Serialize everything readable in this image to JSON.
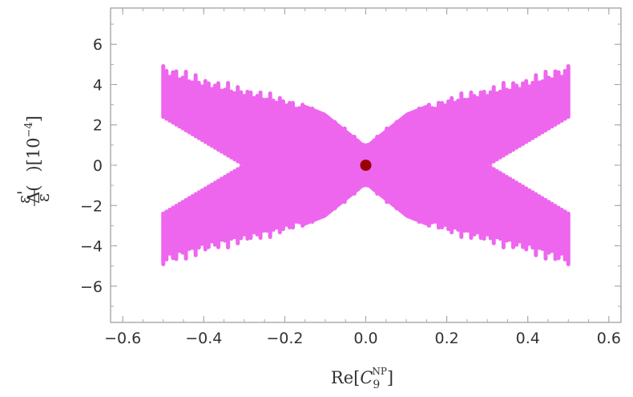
{
  "chart_data": {
    "type": "scatter",
    "xlabel": "Re[C_9^NP]",
    "xlabel_parts": {
      "prefix": "Re[",
      "symbol": "C",
      "sub": "9",
      "sup": "NP",
      "suffix": "]"
    },
    "ylabel": "Δ(ε'/ε)[10^-4]",
    "ylabel_parts": {
      "delta": "Δ(",
      "num": "ε'",
      "den": "ε",
      "close": ")[10",
      "exp": "−4",
      "end": "]"
    },
    "xlim": [
      -0.63,
      0.63
    ],
    "ylim": [
      -7.8,
      7.8
    ],
    "x_ticks": [
      -0.6,
      -0.4,
      -0.2,
      0.0,
      0.2,
      0.4,
      0.6
    ],
    "x_tick_labels": [
      "−0.6",
      "−0.4",
      "−0.2",
      "0.0",
      "0.2",
      "0.4",
      "0.6"
    ],
    "y_ticks": [
      -6,
      -4,
      -2,
      0,
      2,
      4,
      6
    ],
    "y_tick_labels": [
      "−6",
      "−4",
      "−2",
      "0",
      "2",
      "4",
      "6"
    ],
    "series": [
      {
        "color": "#ee66ee",
        "x_range": [
          -0.5,
          0.5
        ],
        "envelope_points": [
          {
            "x": 0.5,
            "y_outer": 5.1,
            "y_inner": 2.4
          },
          {
            "x": 0.4,
            "y_outer": 4.4,
            "y_inner": 1.2
          },
          {
            "x": 0.3,
            "y_outer": 3.9,
            "y_inner": 0.0
          },
          {
            "x": 0.2,
            "y_outer": 3.4,
            "y_inner": 0.0
          },
          {
            "x": 0.1,
            "y_outer": 2.6,
            "y_inner": 0.0
          },
          {
            "x": 0.0,
            "y_outer": 1.0,
            "y_inner": 0.0
          }
        ]
      },
      {
        "color": "#990000",
        "points": [
          {
            "x": 0.0,
            "y": 0.0
          }
        ]
      }
    ]
  }
}
